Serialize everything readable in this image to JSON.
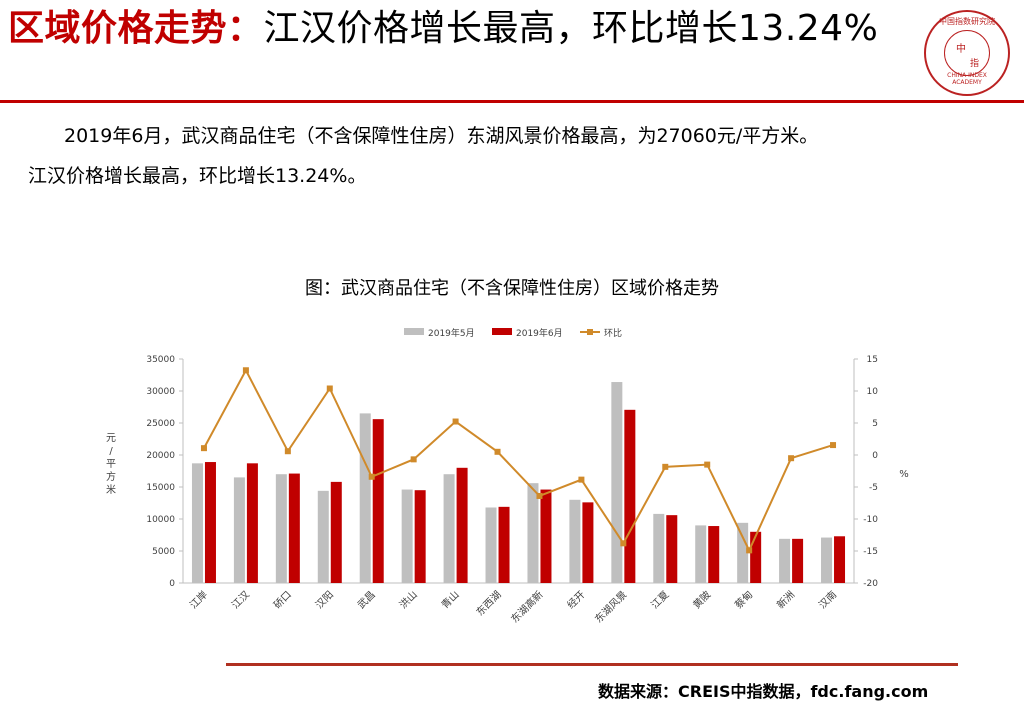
{
  "header": {
    "title_highlight": "区域价格走势：",
    "title_rest": "江汉价格增长最高，环比增长13.24%"
  },
  "logo": {
    "text_cn": "中国指数研究院",
    "center_1": "中",
    "center_2": "指",
    "text_en": "CHINA INDEX ACADEMY"
  },
  "description": {
    "line1": "2019年6月，武汉商品住宅（不含保障性住房）东湖风景价格最高，为27060元/平方米。",
    "line2": "江汉价格增长最高，环比增长13.24%。"
  },
  "chart_caption": "图：武汉商品住宅（不含保障性住房）区域价格走势",
  "chart_data": {
    "type": "bar",
    "categories": [
      "江岸",
      "江汉",
      "硚口",
      "汉阳",
      "武昌",
      "洪山",
      "青山",
      "东西湖",
      "东湖高新",
      "经开",
      "东湖风景",
      "江夏",
      "黄陂",
      "蔡甸",
      "新洲",
      "汉南"
    ],
    "series": [
      {
        "name": "2019年5月",
        "type": "bar",
        "color": "#bfbfbf",
        "values": [
          18700,
          16500,
          17000,
          14400,
          26500,
          14600,
          17000,
          11800,
          15600,
          13000,
          31400,
          10800,
          9000,
          9400,
          6900,
          7100
        ]
      },
      {
        "name": "2019年6月",
        "type": "bar",
        "color": "#c00000",
        "values": [
          18900,
          18700,
          17100,
          15800,
          25600,
          14500,
          18000,
          11900,
          14600,
          12600,
          27060,
          10600,
          8900,
          8000,
          6900,
          7300
        ]
      },
      {
        "name": "环比",
        "type": "line",
        "axis": "right",
        "color": "#d08a2a",
        "values": [
          1.07,
          13.24,
          0.59,
          10.39,
          -3.4,
          -0.68,
          5.23,
          0.5,
          -6.4,
          -3.85,
          -13.8,
          -1.85,
          -1.5,
          -14.9,
          -0.5,
          1.55
        ]
      }
    ],
    "y_left": {
      "label": "元/平方米",
      "label_chars": [
        "元",
        "/",
        "平",
        "方",
        "米"
      ],
      "min": 0,
      "max": 35000,
      "ticks": [
        "0",
        "5000",
        "10000",
        "15000",
        "20000",
        "25000",
        "30000",
        "35000"
      ]
    },
    "y_right": {
      "label": "%",
      "min": -20,
      "max": 15,
      "ticks": [
        "-20",
        "-15",
        "-10",
        "-5",
        "0",
        "5",
        "10",
        "15"
      ]
    },
    "legend_position": "top-center",
    "grid": false
  },
  "source": "数据来源：CREIS中指数据，fdc.fang.com"
}
